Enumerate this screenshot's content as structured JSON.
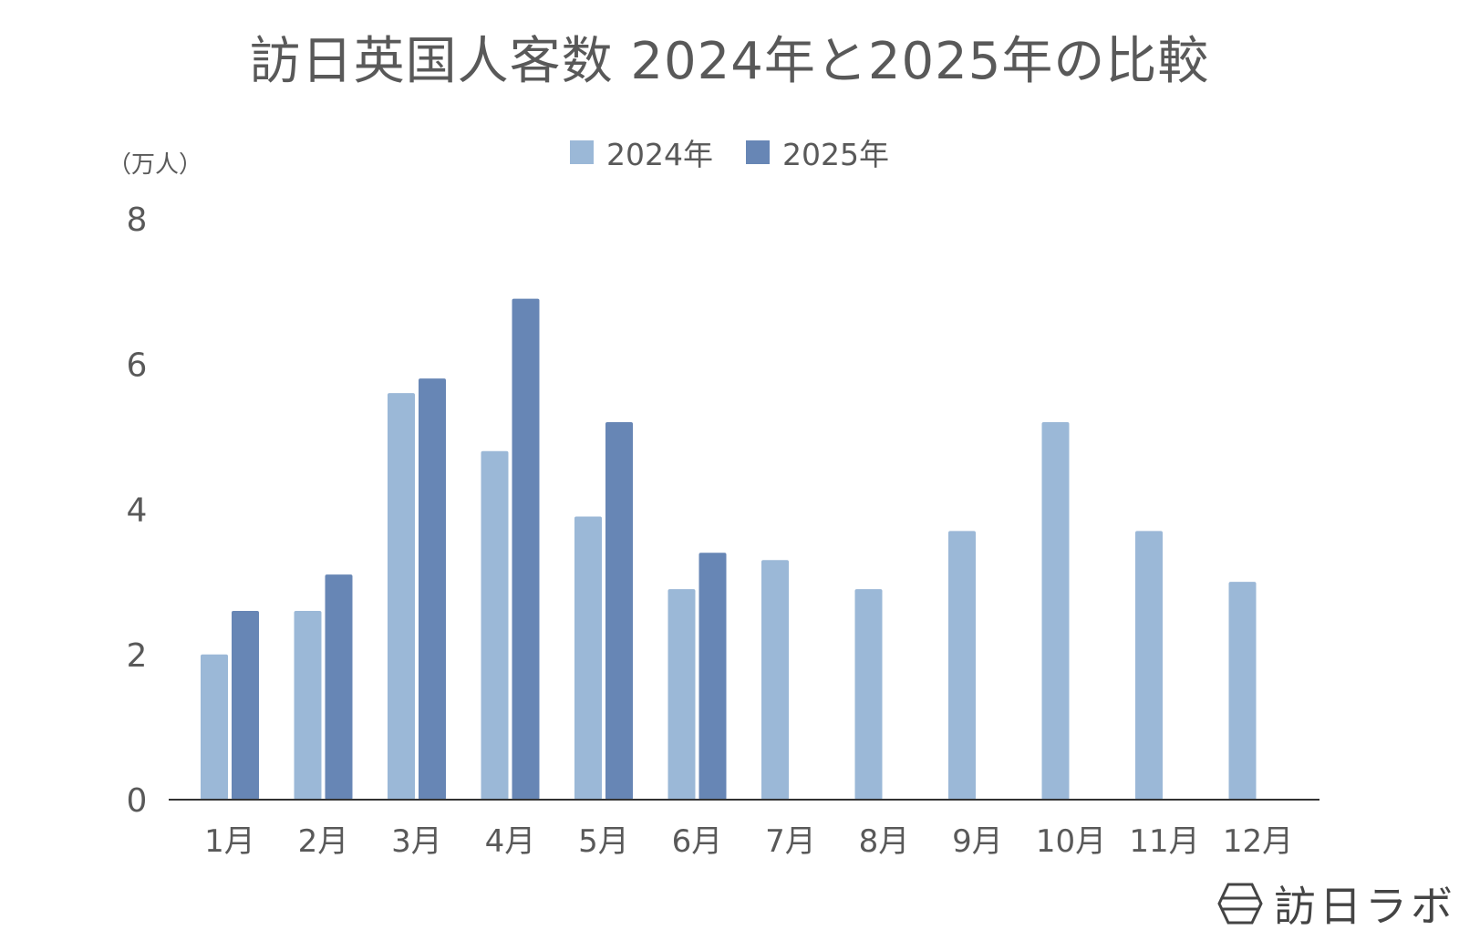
{
  "chart_data": {
    "type": "bar",
    "title": "訪日英国人客数 2024年と2025年の比較",
    "unit_label": "（万人）",
    "categories": [
      "1月",
      "2月",
      "3月",
      "4月",
      "5月",
      "6月",
      "7月",
      "8月",
      "9月",
      "10月",
      "11月",
      "12月"
    ],
    "series": [
      {
        "name": "2024年",
        "color": "#9bb8d7",
        "values": [
          2.0,
          2.6,
          5.6,
          4.8,
          3.9,
          2.9,
          3.3,
          2.9,
          3.7,
          5.2,
          3.7,
          3.0
        ]
      },
      {
        "name": "2025年",
        "color": "#6786b5",
        "values": [
          2.6,
          3.1,
          5.8,
          6.9,
          5.2,
          3.4,
          null,
          null,
          null,
          null,
          null,
          null
        ]
      }
    ],
    "ylim": [
      0,
      8
    ],
    "yticks": [
      "0",
      "2",
      "4",
      "6",
      "8"
    ],
    "grid": false,
    "legend_position": "top-center"
  },
  "logo": {
    "text": "訪日ラボ",
    "icon": "hexagon-logo-icon"
  }
}
